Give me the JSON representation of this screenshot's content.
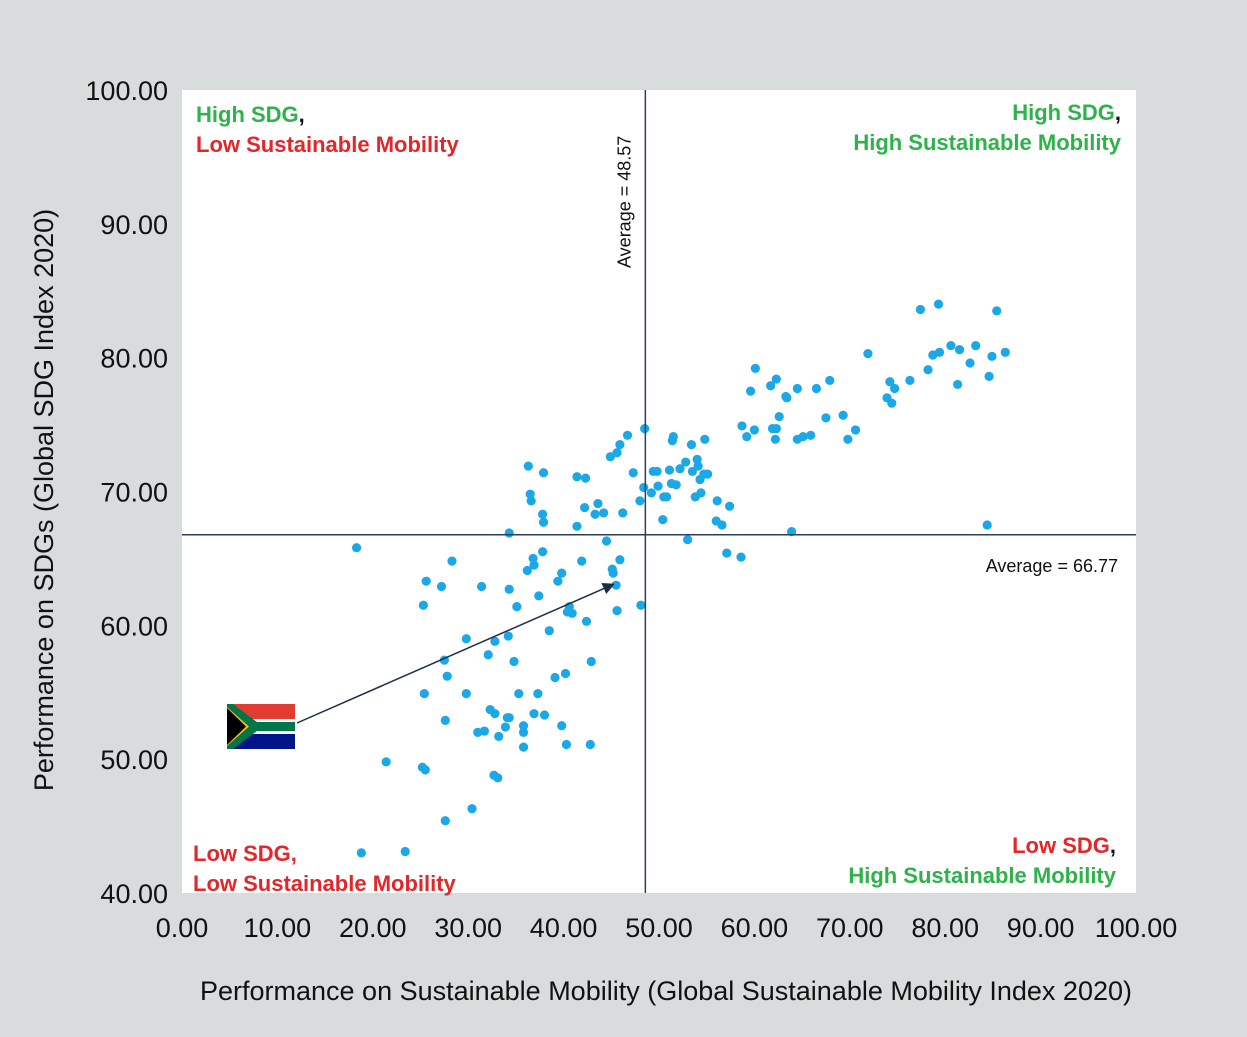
{
  "colors": {
    "background": "#d9dcdd",
    "plot_area": "#ffffff",
    "point": "#1ba8e6",
    "average_line": "#2c3e5a",
    "high": "#2db34a",
    "low": "#e3262a",
    "arrow": "#1e2d45"
  },
  "chart_data": {
    "type": "scatter",
    "xlabel": "Performance on Sustainable Mobility (Global Sustainable Mobility Index 2020)",
    "ylabel": "Performance on SDGs (Global SDG Index 2020)",
    "xlim": [
      0,
      100
    ],
    "ylim": [
      40,
      100
    ],
    "x_ticks": [
      "0.00",
      "10.00",
      "20.00",
      "30.00",
      "40.00",
      "50.00",
      "60.00",
      "70.00",
      "80.00",
      "90.00",
      "100.00"
    ],
    "y_ticks": [
      "40.00",
      "50.00",
      "60.00",
      "70.00",
      "80.00",
      "90.00",
      "100.00"
    ],
    "grid": false,
    "average_x": {
      "value": 48.57,
      "label": "Average = 48.57"
    },
    "average_y": {
      "value": 66.77,
      "label": "Average = 66.77"
    },
    "quadrants": {
      "top_left": {
        "line1": "High SDG",
        "line2": "Low Sustainable Mobility"
      },
      "top_right": {
        "line1": "High SDG",
        "line2": "High Sustainable Mobility"
      },
      "bottom_left": {
        "line1": "Low SDG,",
        "line2": "Low Sustainable Mobility"
      },
      "bottom_right": {
        "line1": "Low SDG",
        "line2": "High Sustainable Mobility"
      },
      "comma": ","
    },
    "highlight": {
      "label": "South Africa flag",
      "x": 45.7,
      "y": 63.2
    },
    "points": [
      [
        18.3,
        65.8
      ],
      [
        18.8,
        43.0
      ],
      [
        21.4,
        49.8
      ],
      [
        23.4,
        43.1
      ],
      [
        25.3,
        61.5
      ],
      [
        25.6,
        63.3
      ],
      [
        25.4,
        54.9
      ],
      [
        25.2,
        49.4
      ],
      [
        25.5,
        49.2
      ],
      [
        27.2,
        62.9
      ],
      [
        27.5,
        57.4
      ],
      [
        27.6,
        52.9
      ],
      [
        27.8,
        56.2
      ],
      [
        27.6,
        45.4
      ],
      [
        28.3,
        64.8
      ],
      [
        29.8,
        59.0
      ],
      [
        29.8,
        54.9
      ],
      [
        30.4,
        46.3
      ],
      [
        31.0,
        52.0
      ],
      [
        31.4,
        62.9
      ],
      [
        31.7,
        52.1
      ],
      [
        32.1,
        57.8
      ],
      [
        32.3,
        53.7
      ],
      [
        32.7,
        48.8
      ],
      [
        32.8,
        53.4
      ],
      [
        32.8,
        58.8
      ],
      [
        33.1,
        48.6
      ],
      [
        33.2,
        51.7
      ],
      [
        33.9,
        52.4
      ],
      [
        34.1,
        53.1
      ],
      [
        34.2,
        59.2
      ],
      [
        34.3,
        62.7
      ],
      [
        34.3,
        66.9
      ],
      [
        34.3,
        53.1
      ],
      [
        34.8,
        57.3
      ],
      [
        35.1,
        61.4
      ],
      [
        35.3,
        54.9
      ],
      [
        35.8,
        50.9
      ],
      [
        35.8,
        52.5
      ],
      [
        35.8,
        52.0
      ],
      [
        36.2,
        64.1
      ],
      [
        36.3,
        71.9
      ],
      [
        36.5,
        69.8
      ],
      [
        36.6,
        69.3
      ],
      [
        36.8,
        65.0
      ],
      [
        36.9,
        64.5
      ],
      [
        36.9,
        53.4
      ],
      [
        37.3,
        54.9
      ],
      [
        37.4,
        62.2
      ],
      [
        37.8,
        68.3
      ],
      [
        37.8,
        65.5
      ],
      [
        37.9,
        67.7
      ],
      [
        37.9,
        71.4
      ],
      [
        38.0,
        53.3
      ],
      [
        38.5,
        59.6
      ],
      [
        39.1,
        56.1
      ],
      [
        39.4,
        63.3
      ],
      [
        39.8,
        52.5
      ],
      [
        39.8,
        63.9
      ],
      [
        40.2,
        56.4
      ],
      [
        40.3,
        51.1
      ],
      [
        40.4,
        61.0
      ],
      [
        40.9,
        60.9
      ],
      [
        40.6,
        61.4
      ],
      [
        41.4,
        71.1
      ],
      [
        41.4,
        67.4
      ],
      [
        41.9,
        64.8
      ],
      [
        42.2,
        68.8
      ],
      [
        42.3,
        71.0
      ],
      [
        42.4,
        60.3
      ],
      [
        42.8,
        51.1
      ],
      [
        42.9,
        57.3
      ],
      [
        43.3,
        68.3
      ],
      [
        43.6,
        69.1
      ],
      [
        44.2,
        68.4
      ],
      [
        44.5,
        66.3
      ],
      [
        44.9,
        72.6
      ],
      [
        45.1,
        64.2
      ],
      [
        45.2,
        63.9
      ],
      [
        45.5,
        63.0
      ],
      [
        45.6,
        72.9
      ],
      [
        45.6,
        61.1
      ],
      [
        45.9,
        64.9
      ],
      [
        45.9,
        73.5
      ],
      [
        46.2,
        68.4
      ],
      [
        46.7,
        74.2
      ],
      [
        47.3,
        71.4
      ],
      [
        48.0,
        69.3
      ],
      [
        48.1,
        61.5
      ],
      [
        48.4,
        70.3
      ],
      [
        48.5,
        74.7
      ],
      [
        49.2,
        69.9
      ],
      [
        49.4,
        71.5
      ],
      [
        49.8,
        71.5
      ],
      [
        49.9,
        70.4
      ],
      [
        50.4,
        67.9
      ],
      [
        50.5,
        69.6
      ],
      [
        50.8,
        69.6
      ],
      [
        51.1,
        71.6
      ],
      [
        51.3,
        70.6
      ],
      [
        51.4,
        73.8
      ],
      [
        51.5,
        74.1
      ],
      [
        51.8,
        70.5
      ],
      [
        52.2,
        71.7
      ],
      [
        52.8,
        72.2
      ],
      [
        53.0,
        66.4
      ],
      [
        53.4,
        73.5
      ],
      [
        53.5,
        71.5
      ],
      [
        53.8,
        69.6
      ],
      [
        54.0,
        72.4
      ],
      [
        54.1,
        71.9
      ],
      [
        54.3,
        70.9
      ],
      [
        54.4,
        69.9
      ],
      [
        54.7,
        71.3
      ],
      [
        54.8,
        73.9
      ],
      [
        55.1,
        71.3
      ],
      [
        56.0,
        67.8
      ],
      [
        56.1,
        69.3
      ],
      [
        56.6,
        67.5
      ],
      [
        57.1,
        65.4
      ],
      [
        57.4,
        68.9
      ],
      [
        58.6,
        65.1
      ],
      [
        58.7,
        74.9
      ],
      [
        59.2,
        74.1
      ],
      [
        59.6,
        77.5
      ],
      [
        60.0,
        74.6
      ],
      [
        60.1,
        79.2
      ],
      [
        61.7,
        77.9
      ],
      [
        61.9,
        74.7
      ],
      [
        62.2,
        73.9
      ],
      [
        62.3,
        74.7
      ],
      [
        62.6,
        75.6
      ],
      [
        62.3,
        78.4
      ],
      [
        63.3,
        77.1
      ],
      [
        63.4,
        77.0
      ],
      [
        63.9,
        67.0
      ],
      [
        64.5,
        77.7
      ],
      [
        64.5,
        73.9
      ],
      [
        65.1,
        74.1
      ],
      [
        65.9,
        74.2
      ],
      [
        66.5,
        77.7
      ],
      [
        67.5,
        75.5
      ],
      [
        67.9,
        78.3
      ],
      [
        69.3,
        75.7
      ],
      [
        69.8,
        73.9
      ],
      [
        70.6,
        74.6
      ],
      [
        71.9,
        80.3
      ],
      [
        73.9,
        77.0
      ],
      [
        74.2,
        78.2
      ],
      [
        74.4,
        76.6
      ],
      [
        74.7,
        77.7
      ],
      [
        76.3,
        78.3
      ],
      [
        77.4,
        83.6
      ],
      [
        78.2,
        79.1
      ],
      [
        78.7,
        80.2
      ],
      [
        79.3,
        84.0
      ],
      [
        79.4,
        80.4
      ],
      [
        80.6,
        80.9
      ],
      [
        81.3,
        78.0
      ],
      [
        81.5,
        80.6
      ],
      [
        82.6,
        79.6
      ],
      [
        83.2,
        80.9
      ],
      [
        84.6,
        78.6
      ],
      [
        84.9,
        80.1
      ],
      [
        84.4,
        67.5
      ],
      [
        85.4,
        83.5
      ],
      [
        86.3,
        80.4
      ]
    ]
  }
}
